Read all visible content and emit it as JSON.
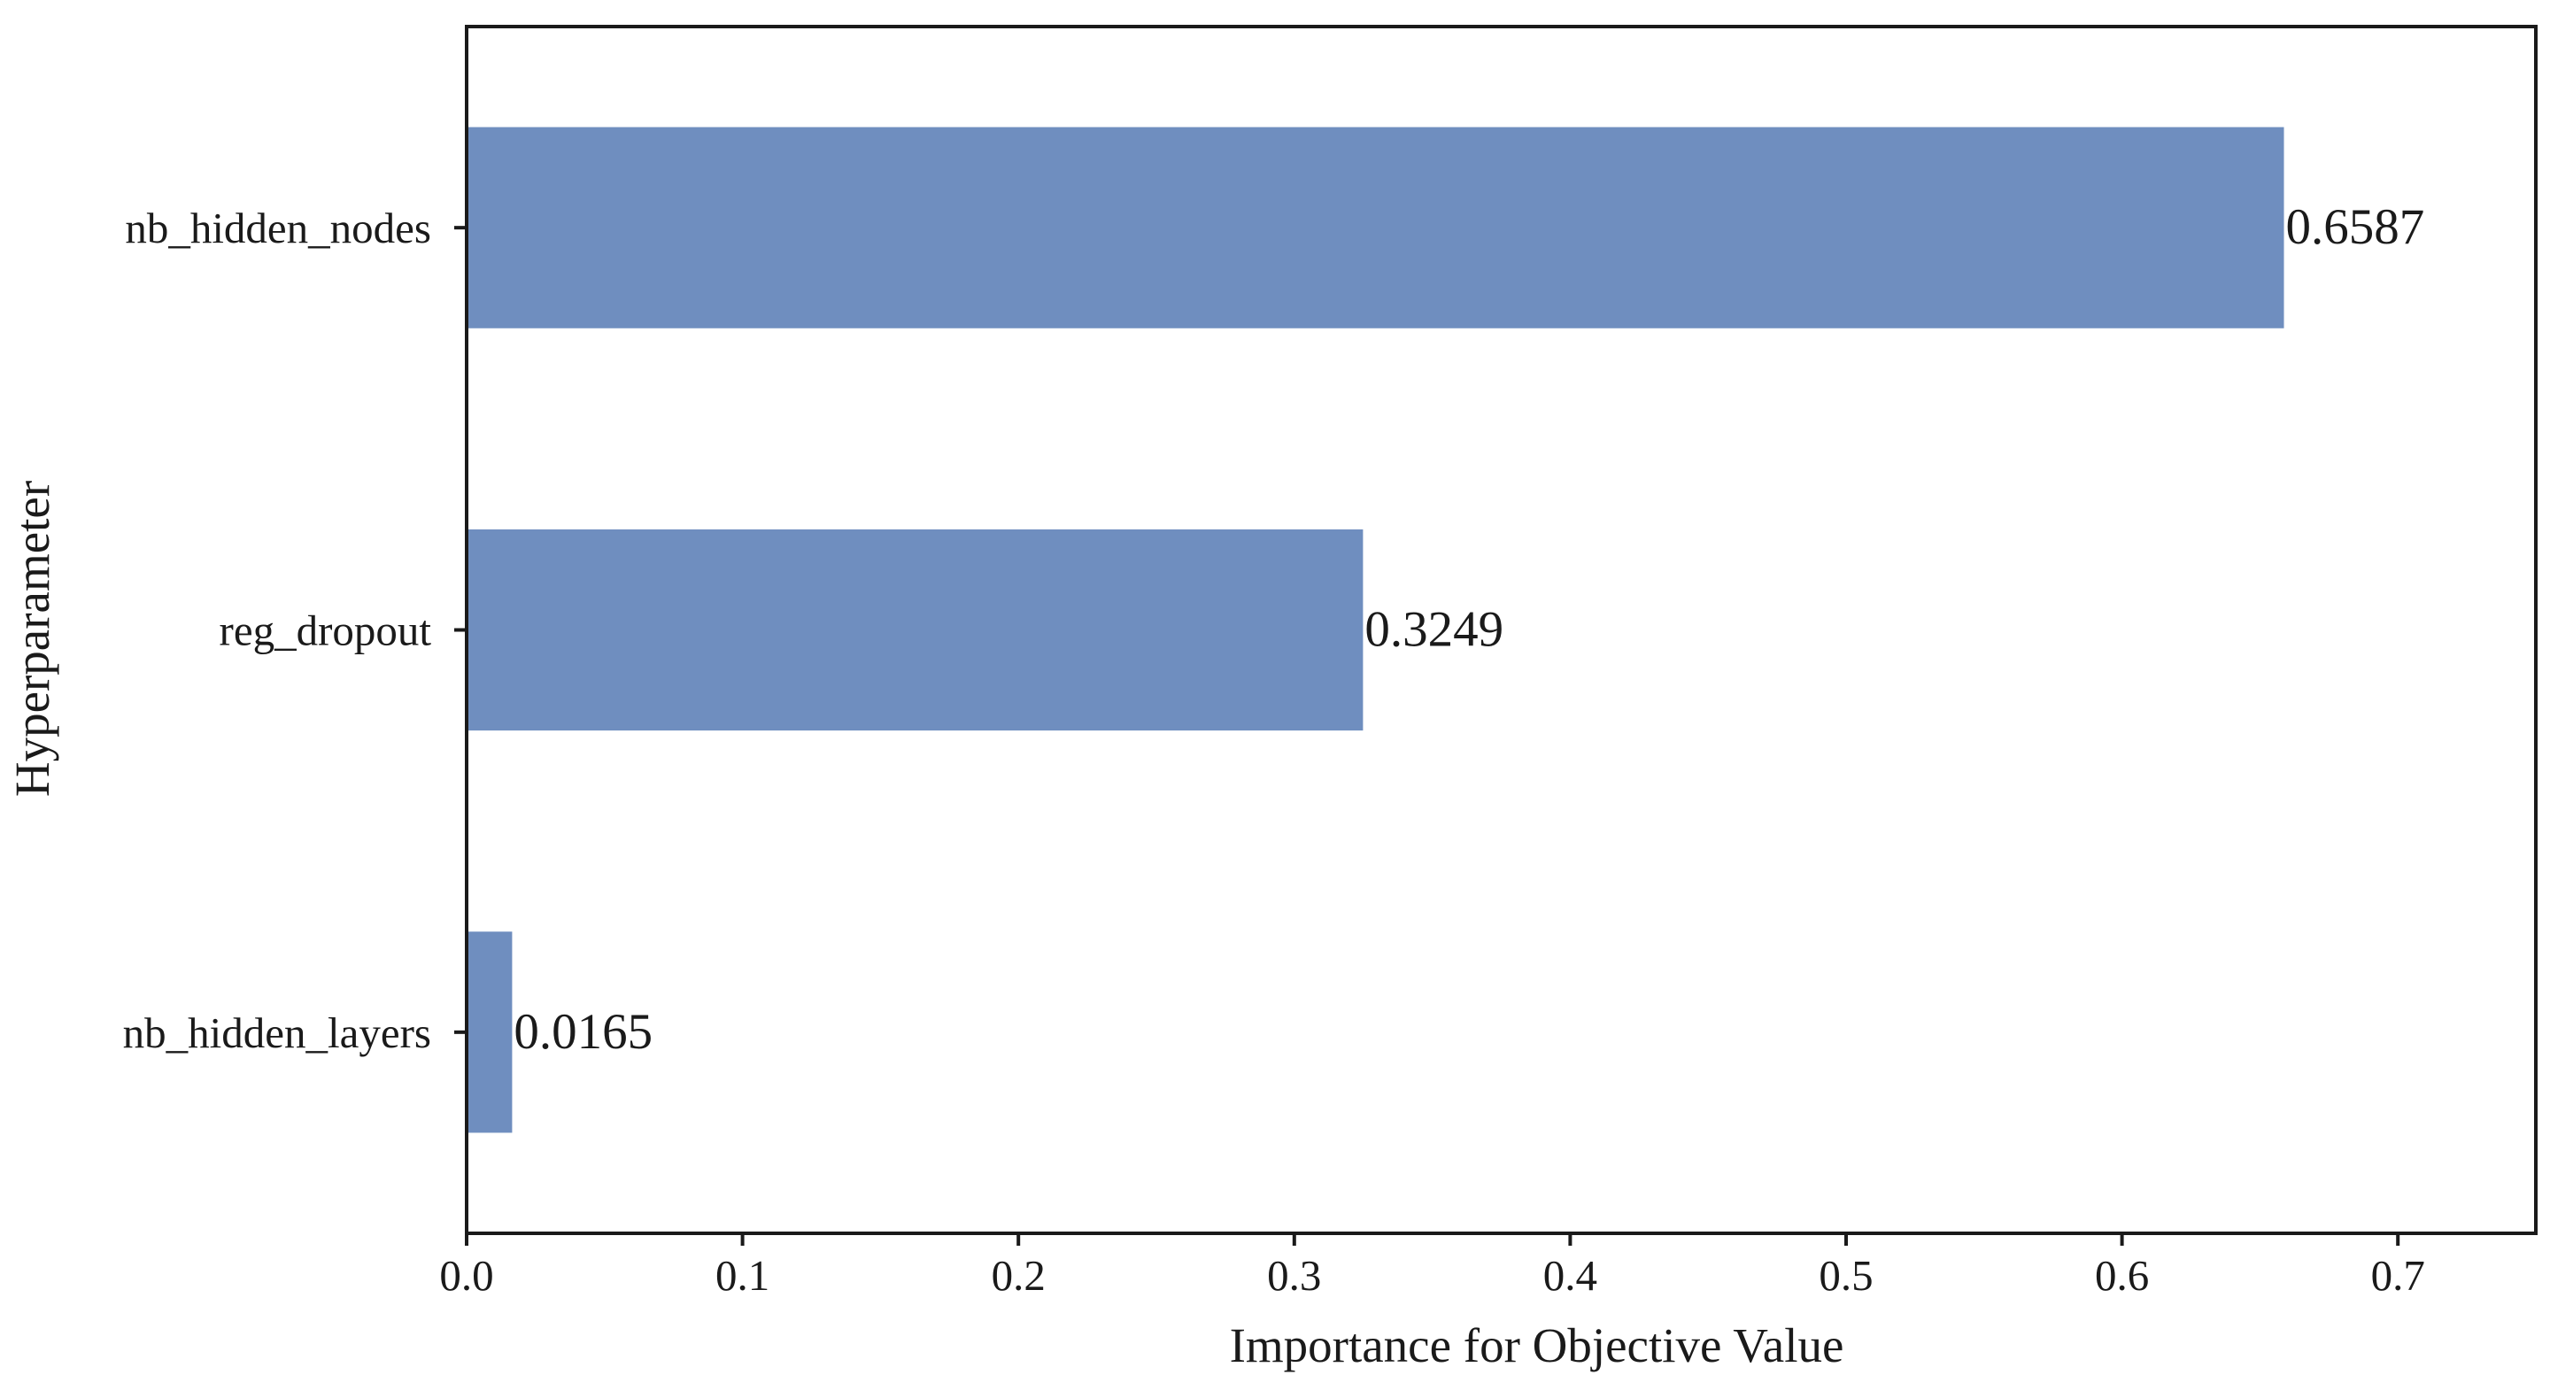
{
  "chart_data": {
    "type": "bar",
    "orientation": "horizontal",
    "title": "",
    "xlabel": "Importance for Objective Value",
    "ylabel": "Hyperparameter",
    "categories": [
      "nb_hidden_nodes",
      "reg_dropout",
      "nb_hidden_layers"
    ],
    "values": [
      0.6587,
      0.3249,
      0.0165
    ],
    "value_labels": [
      "0.6587",
      "0.3249",
      "0.0165"
    ],
    "xlim": [
      0.0,
      0.75
    ],
    "xticks": [
      0.0,
      0.1,
      0.2,
      0.3,
      0.4,
      0.5,
      0.6,
      0.7
    ],
    "xtick_labels": [
      "0.0",
      "0.1",
      "0.2",
      "0.3",
      "0.4",
      "0.5",
      "0.6",
      "0.7"
    ],
    "grid": false,
    "bar_color": "#6f8ebf",
    "axis_color": "#1a1a1a"
  }
}
